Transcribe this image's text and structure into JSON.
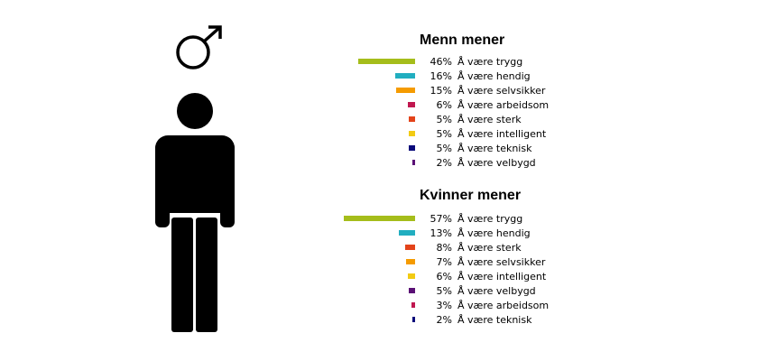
{
  "chart_data": [
    {
      "type": "bar",
      "orientation": "horizontal",
      "title": "Menn mener",
      "unit": "%",
      "categories": [
        "Å være trygg",
        "Å være hendig",
        "Å være selvsikker",
        "Å være arbeidsom",
        "Å være sterk",
        "Å være intelligent",
        "Å være teknisk",
        "Å være velbygd"
      ],
      "values": [
        46,
        16,
        15,
        6,
        5,
        5,
        5,
        2
      ],
      "value_labels": [
        "46%",
        "16%",
        "15%",
        "6%",
        "5%",
        "5%",
        "5%",
        "2%"
      ],
      "colors": [
        "#a5bd1b",
        "#21aec0",
        "#f59b00",
        "#c0174f",
        "#e3431a",
        "#f2cb13",
        "#0a0a7a",
        "#5a1075"
      ]
    },
    {
      "type": "bar",
      "orientation": "horizontal",
      "title": "Kvinner mener",
      "unit": "%",
      "categories": [
        "Å være trygg",
        "Å være hendig",
        "Å være sterk",
        "Å være selvsikker",
        "Å være intelligent",
        "Å være velbygd",
        "Å være arbeidsom",
        "Å være teknisk"
      ],
      "values": [
        57,
        13,
        8,
        7,
        6,
        5,
        3,
        2
      ],
      "value_labels": [
        "57%",
        "13%",
        "8%",
        "7%",
        "6%",
        "5%",
        "3%",
        "2%"
      ],
      "colors": [
        "#a5bd1b",
        "#21aec0",
        "#e3431a",
        "#f59b00",
        "#f2cb13",
        "#5a1075",
        "#c0174f",
        "#0a0a7a"
      ]
    }
  ],
  "icons": {
    "male_symbol": "male-symbol-icon",
    "person": "man-figure-icon",
    "color": "#000000"
  }
}
